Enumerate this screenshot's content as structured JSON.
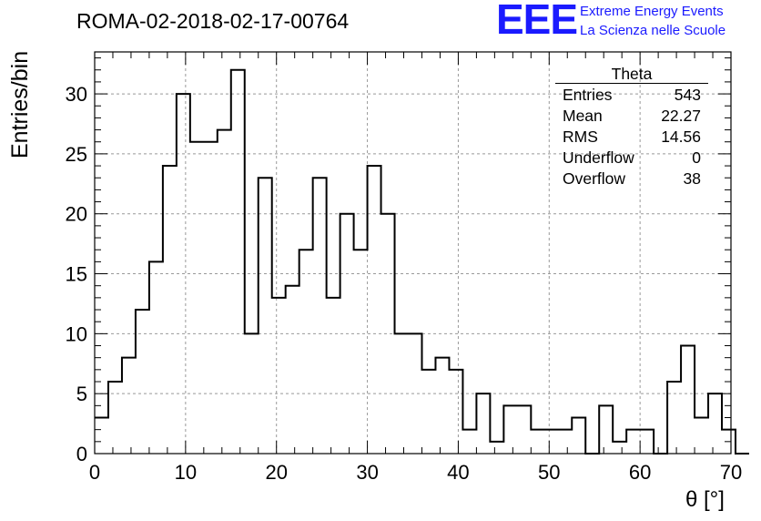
{
  "header": {
    "run_title": "ROMA-02-2018-02-17-00764",
    "logo_text": "EEE",
    "logo_line1": "Extreme Energy Events",
    "logo_line2": "La Scienza nelle Scuole",
    "logo_color": "#1a1aff"
  },
  "stats_box": {
    "title": "Theta",
    "rows": [
      {
        "label": "Entries",
        "value": "543"
      },
      {
        "label": "Mean",
        "value": "22.27"
      },
      {
        "label": "RMS",
        "value": "14.56"
      },
      {
        "label": "Underflow",
        "value": "0"
      },
      {
        "label": "Overflow",
        "value": "38"
      }
    ]
  },
  "chart_data": {
    "type": "histogram",
    "title": "ROMA-02-2018-02-17-00764",
    "xlabel": "θ [°]",
    "ylabel": "Entries/bin",
    "xlim": [
      0,
      70
    ],
    "ylim": [
      0,
      33.5
    ],
    "bin_width": 1.5,
    "bin_start": 0,
    "x_ticks": [
      0,
      10,
      20,
      30,
      40,
      50,
      60,
      70
    ],
    "y_ticks": [
      0,
      5,
      10,
      15,
      20,
      25,
      30
    ],
    "grid": true,
    "values": [
      3,
      6,
      8,
      12,
      16,
      24,
      30,
      26,
      26,
      27,
      32,
      10,
      23,
      13,
      14,
      17,
      23,
      13,
      20,
      17,
      24,
      20,
      10,
      10,
      7,
      8,
      7,
      2,
      5,
      1,
      4,
      4,
      2,
      2,
      2,
      3,
      0,
      4,
      1,
      2,
      2,
      0,
      6,
      9,
      3,
      5,
      2,
      0
    ],
    "line_color": "#000000"
  }
}
